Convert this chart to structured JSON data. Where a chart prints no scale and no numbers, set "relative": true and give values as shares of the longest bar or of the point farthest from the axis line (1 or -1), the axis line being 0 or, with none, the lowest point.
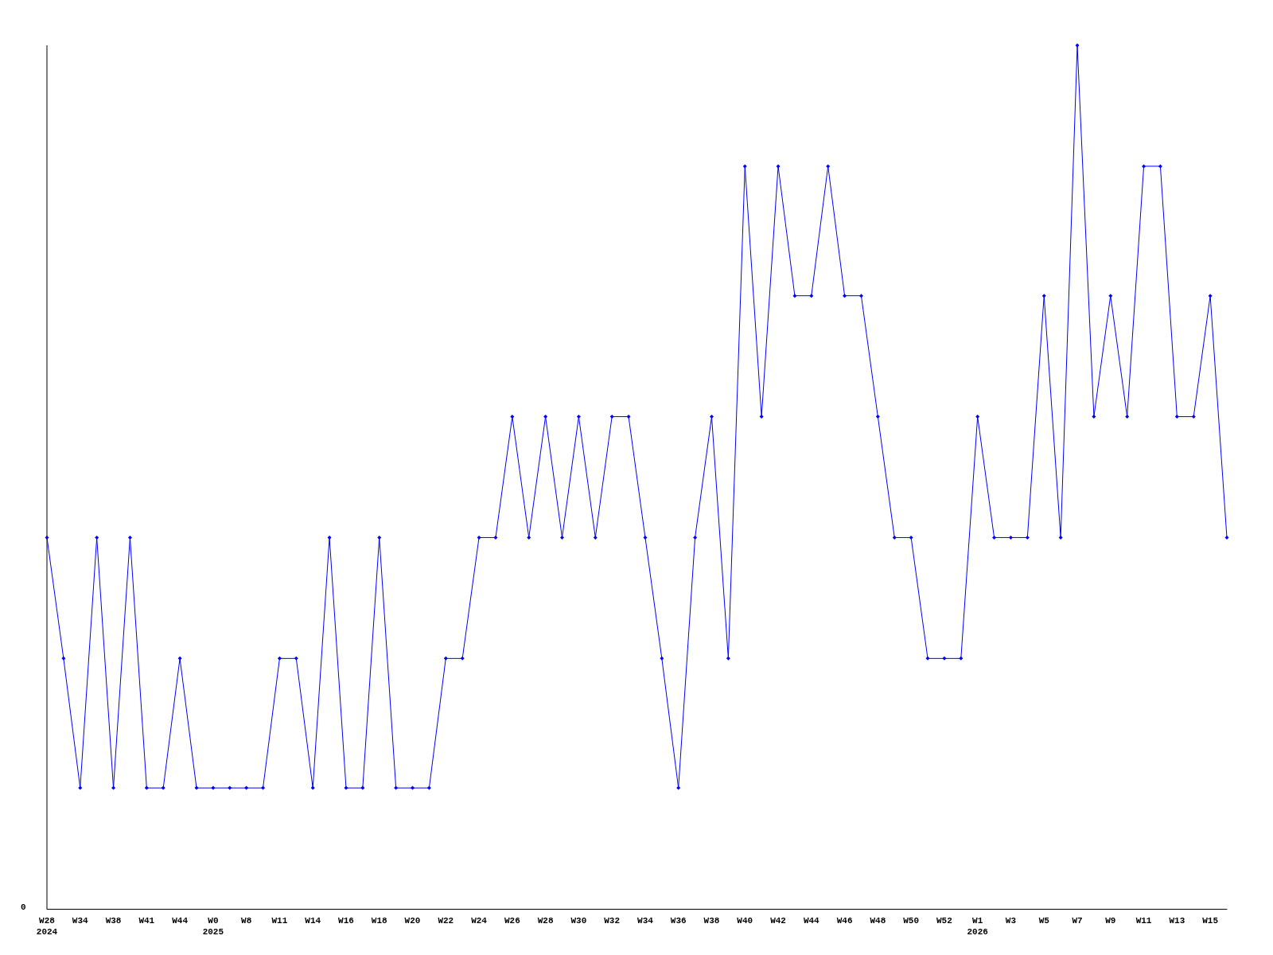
{
  "chart_data": {
    "type": "line",
    "relative": true,
    "color": "#0000ff",
    "marker": "diamond",
    "line_style": "solid",
    "grid": false,
    "annotations": [
      "0"
    ],
    "categories": [
      "W28\n2024",
      null,
      "W34",
      null,
      "W38",
      null,
      "W41",
      null,
      "W44",
      null,
      "W0\n2025",
      null,
      "W8",
      null,
      "W11",
      null,
      "W14",
      null,
      "W16",
      null,
      "W18",
      null,
      "W20",
      null,
      "W22",
      null,
      "W24",
      null,
      "W26",
      null,
      "W28",
      null,
      "W30",
      null,
      "W32",
      null,
      "W34",
      null,
      "W36",
      null,
      "W38",
      null,
      "W40",
      null,
      "W42",
      null,
      "W44",
      null,
      "W46",
      null,
      "W48",
      null,
      "W50",
      null,
      "W52",
      null,
      "W1\n2026",
      null,
      "W3",
      null,
      "W5",
      null,
      "W7",
      null,
      "W9",
      null,
      "W11",
      null,
      "W13",
      null,
      "W15",
      null
    ],
    "values": [
      0.43,
      0.29,
      0.14,
      0.43,
      0.14,
      0.43,
      0.14,
      0.14,
      0.29,
      0.14,
      0.14,
      0.14,
      0.14,
      0.14,
      0.29,
      0.29,
      0.14,
      0.43,
      0.14,
      0.14,
      0.43,
      0.14,
      0.14,
      0.14,
      0.29,
      0.29,
      0.43,
      0.43,
      0.57,
      0.43,
      0.57,
      0.43,
      0.57,
      0.43,
      0.57,
      0.57,
      0.43,
      0.29,
      0.14,
      0.43,
      0.57,
      0.29,
      0.86,
      0.57,
      0.86,
      0.71,
      0.71,
      0.86,
      0.71,
      0.71,
      0.57,
      0.43,
      0.43,
      0.29,
      0.29,
      0.29,
      0.57,
      0.43,
      0.43,
      0.43,
      0.71,
      0.43,
      1,
      0.57,
      0.71,
      0.57,
      0.86,
      0.86,
      0.57,
      0.57,
      0.71,
      0.43
    ]
  }
}
